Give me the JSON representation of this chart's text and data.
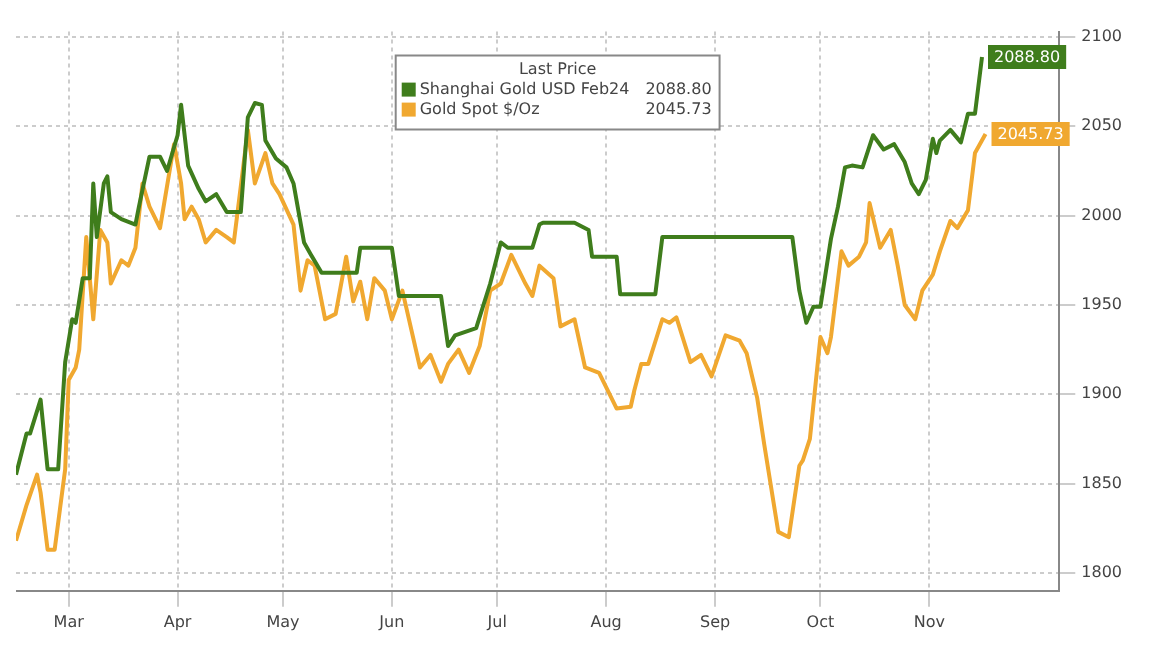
{
  "chart_data": {
    "type": "line",
    "legend_title": "Last Price",
    "legend": "top",
    "grid": true,
    "line_style": "solid",
    "marker": "none",
    "xlim": [
      "--02-28",
      "--12-22"
    ],
    "ylim": [
      1790,
      2103
    ],
    "xticks": [
      {
        "value": "--03-15",
        "label": "Mar"
      },
      {
        "value": "--04-15",
        "label": "Apr"
      },
      {
        "value": "--05-15",
        "label": "May"
      },
      {
        "value": "--06-15",
        "label": "Jun"
      },
      {
        "value": "--07-15",
        "label": "Jul"
      },
      {
        "value": "--08-15",
        "label": "Aug"
      },
      {
        "value": "--09-15",
        "label": "Sep"
      },
      {
        "value": "--10-15",
        "label": "Oct"
      },
      {
        "value": "--11-15",
        "label": "Nov"
      }
    ],
    "yticks": [
      1800,
      1850,
      1900,
      1950,
      2000,
      2050,
      2100
    ],
    "series": [
      {
        "name": "Shanghai Gold USD Feb24",
        "color": "#3f7d1c",
        "x": [
          "--02-28",
          "--03-03",
          "--03-04",
          "--03-07",
          "--03-09",
          "--03-12",
          "--03-14",
          "--03-16",
          "--03-17",
          "--03-19",
          "--03-21",
          "--03-22",
          "--03-23",
          "--03-25",
          "--03-26",
          "--03-27",
          "--03-30",
          "--04-03",
          "--04-04",
          "--04-07",
          "--04-10",
          "--04-12",
          "--04-15",
          "--04-16",
          "--04-18",
          "--04-21",
          "--04-23",
          "--04-26",
          "--04-29",
          "--05-03",
          "--05-05",
          "--05-07",
          "--05-09",
          "--05-10",
          "--05-13",
          "--05-16",
          "--05-18",
          "--05-21",
          "--05-23",
          "--05-26",
          "--06-05",
          "--06-06",
          "--06-15",
          "--06-17",
          "--06-29",
          "--07-01",
          "--07-03",
          "--07-09",
          "--07-13",
          "--07-16",
          "--07-18",
          "--07-25",
          "--07-27",
          "--07-28",
          "--08-06",
          "--08-10",
          "--08-11",
          "--08-18",
          "--08-19",
          "--08-29",
          "--08-31",
          "--10-07",
          "--10-09",
          "--10-11",
          "--10-13",
          "--10-15",
          "--10-18",
          "--10-20",
          "--10-22",
          "--10-24",
          "--10-27",
          "--10-30",
          "--11-02",
          "--11-05",
          "--11-08",
          "--11-10",
          "--11-12",
          "--11-14",
          "--11-16",
          "--11-17",
          "--11-18",
          "--11-21",
          "--11-24",
          "--11-26",
          "--11-28",
          "--11-30"
        ],
        "values": [
          1855,
          1878,
          1878,
          1897,
          1858,
          1858,
          1918,
          1942,
          1940,
          1965,
          1965,
          2018,
          1988,
          2018,
          2022,
          2002,
          1998,
          1995,
          2005,
          2033,
          2033,
          2025,
          2045,
          2062,
          2028,
          2015,
          2008,
          2012,
          2002,
          2002,
          2055,
          2063,
          2062,
          2042,
          2032,
          2027,
          2018,
          1985,
          1978,
          1968,
          1968,
          1982,
          1982,
          1955,
          1955,
          1927,
          1933,
          1937,
          1962,
          1985,
          1982,
          1982,
          1995,
          1996,
          1996,
          1992,
          1977,
          1977,
          1956,
          1956,
          1988,
          1988,
          1958,
          1940,
          1949,
          1949,
          1987,
          2005,
          2027,
          2028,
          2027,
          2045,
          2037,
          2040,
          2030,
          2018,
          2012,
          2020,
          2043,
          2035,
          2042,
          2048,
          2041,
          2057,
          2057,
          2088.8
        ],
        "value_labels": [
          null,
          null,
          null,
          null,
          null,
          null,
          null,
          null,
          null,
          null,
          null,
          null,
          null,
          null,
          null,
          null,
          null,
          null,
          null,
          null,
          null,
          null,
          null,
          null,
          null,
          null,
          null,
          null,
          null,
          null,
          null,
          null,
          null,
          null,
          null,
          null,
          null,
          null,
          null,
          null,
          null,
          null,
          null,
          null,
          null,
          null,
          null,
          null,
          null,
          null,
          null,
          null,
          null,
          null,
          null,
          null,
          null,
          null,
          null,
          null,
          null,
          null,
          null,
          null,
          null,
          null,
          null,
          null,
          null,
          null,
          null,
          null,
          null,
          null,
          null,
          null,
          null,
          null,
          null,
          null,
          null,
          null,
          null,
          null,
          null,
          "2088.80"
        ]
      },
      {
        "name": "Gold Spot $/Oz",
        "color": "#f0a830",
        "x": [
          "--02-28",
          "--03-03",
          "--03-06",
          "--03-07",
          "--03-09",
          "--03-11",
          "--03-14",
          "--03-15",
          "--03-17",
          "--03-18",
          "--03-20",
          "--03-22",
          "--03-24",
          "--03-26",
          "--03-27",
          "--03-30",
          "--04-01",
          "--04-03",
          "--04-05",
          "--04-07",
          "--04-10",
          "--04-14",
          "--04-16",
          "--04-17",
          "--04-19",
          "--04-21",
          "--04-23",
          "--04-26",
          "--04-29",
          "--05-01",
          "--05-05",
          "--05-07",
          "--05-10",
          "--05-12",
          "--05-14",
          "--05-18",
          "--05-20",
          "--05-22",
          "--05-24",
          "--05-27",
          "--05-30",
          "--06-02",
          "--06-04",
          "--06-06",
          "--06-08",
          "--06-10",
          "--06-13",
          "--06-15",
          "--06-18",
          "--06-23",
          "--06-26",
          "--06-29",
          "--07-01",
          "--07-04",
          "--07-07",
          "--07-10",
          "--07-13",
          "--07-16",
          "--07-19",
          "--07-23",
          "--07-25",
          "--07-27",
          "--07-31",
          "--08-02",
          "--08-06",
          "--08-09",
          "--08-13",
          "--08-18",
          "--08-22",
          "--08-23",
          "--08-25",
          "--08-27",
          "--08-31",
          "--09-02",
          "--09-04",
          "--09-08",
          "--09-11",
          "--09-14",
          "--09-18",
          "--09-22",
          "--09-24",
          "--09-27",
          "--09-29",
          "--10-03",
          "--10-06",
          "--10-09",
          "--10-10",
          "--10-12",
          "--10-15",
          "--10-17",
          "--10-18",
          "--10-21",
          "--10-23",
          "--10-26",
          "--10-28",
          "--10-29",
          "--11-01",
          "--11-04",
          "--11-06",
          "--11-08",
          "--11-11",
          "--11-13",
          "--11-16",
          "--11-18",
          "--11-21",
          "--11-23",
          "--11-26",
          "--11-28",
          "--12-01"
        ],
        "values": [
          1818,
          1838,
          1855,
          1845,
          1813,
          1813,
          1858,
          1908,
          1915,
          1925,
          1988,
          1942,
          1992,
          1985,
          1962,
          1975,
          1972,
          1982,
          2018,
          2005,
          1993,
          2040,
          2018,
          1998,
          2005,
          1998,
          1985,
          1992,
          1988,
          1985,
          2048,
          2018,
          2035,
          2018,
          2012,
          1995,
          1958,
          1975,
          1972,
          1942,
          1945,
          1977,
          1952,
          1963,
          1942,
          1965,
          1958,
          1942,
          1958,
          1915,
          1922,
          1907,
          1917,
          1925,
          1912,
          1927,
          1958,
          1962,
          1978,
          1962,
          1955,
          1972,
          1965,
          1938,
          1942,
          1915,
          1912,
          1892,
          1893,
          1902,
          1917,
          1917,
          1942,
          1940,
          1943,
          1918,
          1922,
          1910,
          1933,
          1930,
          1923,
          1898,
          1872,
          1823,
          1820,
          1860,
          1863,
          1875,
          1932,
          1923,
          1932,
          1980,
          1972,
          1977,
          1985,
          2007,
          1982,
          1992,
          1972,
          1950,
          1942,
          1958,
          1967,
          1980,
          1997,
          1993,
          2003,
          2035,
          2045.73
        ],
        "value_labels": [
          null,
          null,
          null,
          null,
          null,
          null,
          null,
          null,
          null,
          null,
          null,
          null,
          null,
          null,
          null,
          null,
          null,
          null,
          null,
          null,
          null,
          null,
          null,
          null,
          null,
          null,
          null,
          null,
          null,
          null,
          null,
          null,
          null,
          null,
          null,
          null,
          null,
          null,
          null,
          null,
          null,
          null,
          null,
          null,
          null,
          null,
          null,
          null,
          null,
          null,
          null,
          null,
          null,
          null,
          null,
          null,
          null,
          null,
          null,
          null,
          null,
          null,
          null,
          null,
          null,
          null,
          null,
          null,
          null,
          null,
          null,
          null,
          null,
          null,
          null,
          null,
          null,
          null,
          null,
          null,
          null,
          null,
          null,
          null,
          null,
          null,
          null,
          null,
          null,
          null,
          null,
          null,
          null,
          null,
          null,
          null,
          null,
          null,
          null,
          null,
          null,
          null,
          null,
          null,
          null,
          null,
          null,
          null,
          "2045.73"
        ]
      }
    ]
  }
}
